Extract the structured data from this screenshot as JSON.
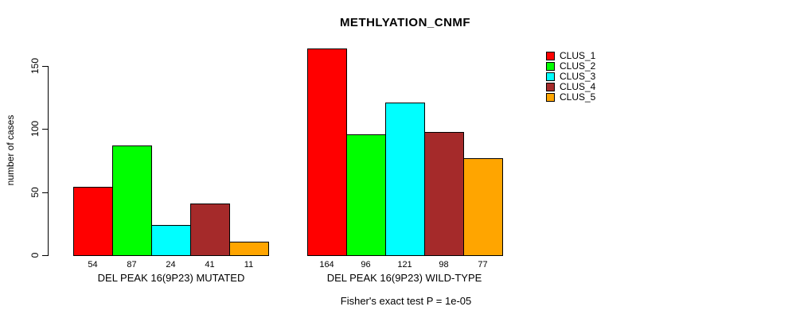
{
  "chart_data": {
    "type": "bar",
    "title": "METHLYATION_CNMF",
    "ylabel": "number of cases",
    "ylim": [
      0,
      165
    ],
    "yticks": [
      0,
      50,
      100,
      150
    ],
    "grid": false,
    "legend_position": "right",
    "annotation": "Fisher's exact test P = 1e-05",
    "clusters": [
      {
        "name": "CLUS_1",
        "color": "#FF0000"
      },
      {
        "name": "CLUS_2",
        "color": "#00FF00"
      },
      {
        "name": "CLUS_3",
        "color": "#00FFFF"
      },
      {
        "name": "CLUS_4",
        "color": "#A52A2A"
      },
      {
        "name": "CLUS_5",
        "color": "#FFA500"
      }
    ],
    "groups": [
      {
        "label": "DEL PEAK 16(9P23) MUTATED",
        "values": [
          54,
          87,
          24,
          41,
          11
        ]
      },
      {
        "label": "DEL PEAK 16(9P23) WILD-TYPE",
        "values": [
          164,
          96,
          121,
          98,
          77
        ]
      }
    ]
  }
}
